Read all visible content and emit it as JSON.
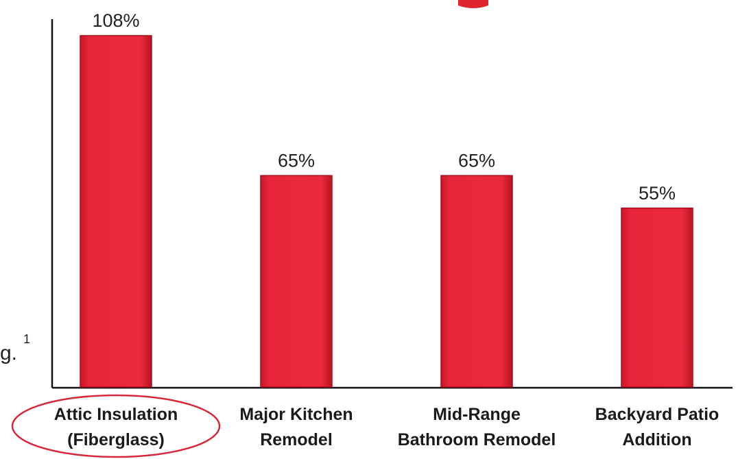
{
  "chart_data": {
    "type": "bar",
    "categories": [
      [
        "Attic Insulation",
        "(Fiberglass)"
      ],
      [
        "Major Kitchen",
        "Remodel"
      ],
      [
        "Mid-Range",
        "Bathroom Remodel"
      ],
      [
        "Backyard Patio",
        "Addition"
      ]
    ],
    "values": [
      108,
      65,
      65,
      55
    ],
    "value_labels": [
      "108%",
      "65%",
      "65%",
      "55%"
    ],
    "title": "",
    "xlabel": "",
    "ylabel": "",
    "ylim": [
      0,
      122
    ],
    "grid": false,
    "legend": "none",
    "highlighted_category_index": 0,
    "bar_color": "#e8253a",
    "bar_edge_color": "#a80f1c",
    "highlight_ring_color": "#d6283a"
  },
  "fragments": {
    "cropped_text_left": "g.",
    "cropped_superscript": "1"
  },
  "colors": {
    "axis": "#111111",
    "red_accent": "#e1252f"
  }
}
